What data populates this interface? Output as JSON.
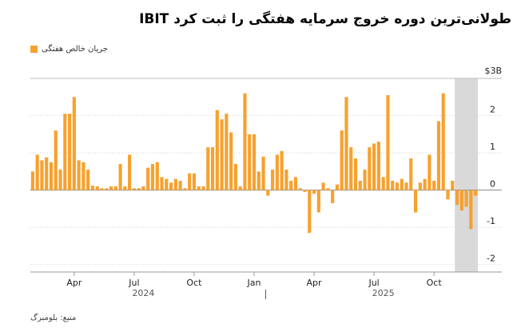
{
  "chart_data": {
    "type": "bar",
    "title": "طولانی‌ترین دوره خروج سرمایه هفتگی را ثبت کرد IBIT",
    "legend": [
      "جریان خالص هفتگی"
    ],
    "source": "منبع: بلومبرگ",
    "ylabel": "$3B",
    "ylim": [
      -2.2,
      3
    ],
    "yticks": [
      -2,
      -1,
      0,
      1,
      2
    ],
    "ytick_labels": [
      "-2",
      "-1",
      "0",
      "1",
      "2"
    ],
    "x_tick_labels": [
      "Apr",
      "Jul",
      "Oct",
      "Jan",
      "Apr",
      "Jul",
      "Oct"
    ],
    "x_tick_index": [
      9,
      22,
      35,
      48,
      61,
      74,
      87
    ],
    "year_labels": [
      {
        "label": "2024",
        "index": 24
      },
      {
        "label": "2025",
        "index": 76
      }
    ],
    "year_divider_index": 51,
    "highlight_range_index": [
      92,
      97
    ],
    "color": "#F7A12E",
    "values": [
      0.5,
      0.95,
      0.8,
      0.88,
      0.75,
      1.6,
      0.55,
      2.05,
      2.05,
      2.5,
      0.8,
      0.75,
      0.55,
      0.12,
      0.1,
      0.05,
      0.05,
      0.1,
      0.1,
      0.7,
      0.1,
      0.95,
      0.05,
      0.05,
      0.1,
      0.6,
      0.7,
      0.75,
      0.35,
      0.3,
      0.2,
      0.3,
      0.25,
      0.05,
      0.45,
      0.45,
      0.1,
      0.1,
      1.15,
      1.15,
      2.15,
      1.9,
      2.05,
      1.55,
      0.7,
      0.1,
      2.6,
      1.5,
      1.5,
      0.5,
      0.9,
      -0.15,
      0.55,
      0.95,
      1.05,
      0.55,
      0.25,
      0.35,
      0.05,
      -0.05,
      -1.15,
      -0.1,
      -0.6,
      0.2,
      0.05,
      -0.35,
      0.15,
      1.6,
      2.5,
      1.15,
      0.85,
      0.25,
      0.55,
      1.15,
      1.25,
      1.3,
      0.35,
      2.55,
      0.25,
      0.2,
      0.3,
      0.2,
      0.85,
      -0.6,
      0.2,
      0.3,
      0.95,
      0.25,
      1.85,
      2.6,
      -0.25,
      0.25,
      -0.4,
      -0.55,
      -0.45,
      -1.05,
      -0.15
    ]
  }
}
